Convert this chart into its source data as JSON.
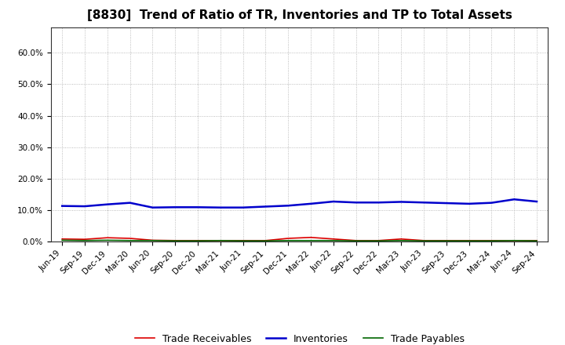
{
  "title": "[8830]  Trend of Ratio of TR, Inventories and TP to Total Assets",
  "background_color": "#ffffff",
  "plot_background_color": "#ffffff",
  "grid_color": "#aaaaaa",
  "x_labels": [
    "Jun-19",
    "Sep-19",
    "Dec-19",
    "Mar-20",
    "Jun-20",
    "Sep-20",
    "Dec-20",
    "Mar-21",
    "Jun-21",
    "Sep-21",
    "Dec-21",
    "Mar-22",
    "Jun-22",
    "Sep-22",
    "Dec-22",
    "Mar-23",
    "Jun-23",
    "Sep-23",
    "Dec-23",
    "Mar-24",
    "Jun-24",
    "Sep-24"
  ],
  "trade_receivables": [
    0.008,
    0.007,
    0.012,
    0.01,
    0.004,
    0.003,
    0.003,
    0.003,
    0.003,
    0.003,
    0.01,
    0.013,
    0.008,
    0.003,
    0.003,
    0.008,
    0.003,
    0.003,
    0.003,
    0.003,
    0.003,
    0.003
  ],
  "inventories": [
    0.113,
    0.112,
    0.118,
    0.123,
    0.108,
    0.109,
    0.109,
    0.108,
    0.108,
    0.111,
    0.114,
    0.12,
    0.127,
    0.124,
    0.124,
    0.126,
    0.124,
    0.122,
    0.12,
    0.123,
    0.134,
    0.127
  ],
  "trade_payables": [
    0.004,
    0.003,
    0.004,
    0.003,
    0.003,
    0.002,
    0.002,
    0.003,
    0.002,
    0.002,
    0.003,
    0.003,
    0.003,
    0.002,
    0.002,
    0.003,
    0.002,
    0.002,
    0.002,
    0.002,
    0.003,
    0.002
  ],
  "tr_color": "#dd0000",
  "inv_color": "#0000cc",
  "tp_color": "#006600",
  "ylim": [
    0.0,
    0.68
  ],
  "yticks": [
    0.0,
    0.1,
    0.2,
    0.3,
    0.4,
    0.5,
    0.6
  ],
  "ytick_labels": [
    "0.0%",
    "10.0%",
    "20.0%",
    "30.0%",
    "40.0%",
    "50.0%",
    "60.0%"
  ],
  "legend_labels": [
    "Trade Receivables",
    "Inventories",
    "Trade Payables"
  ],
  "title_fontsize": 11,
  "tick_fontsize": 7.5,
  "legend_fontsize": 9
}
